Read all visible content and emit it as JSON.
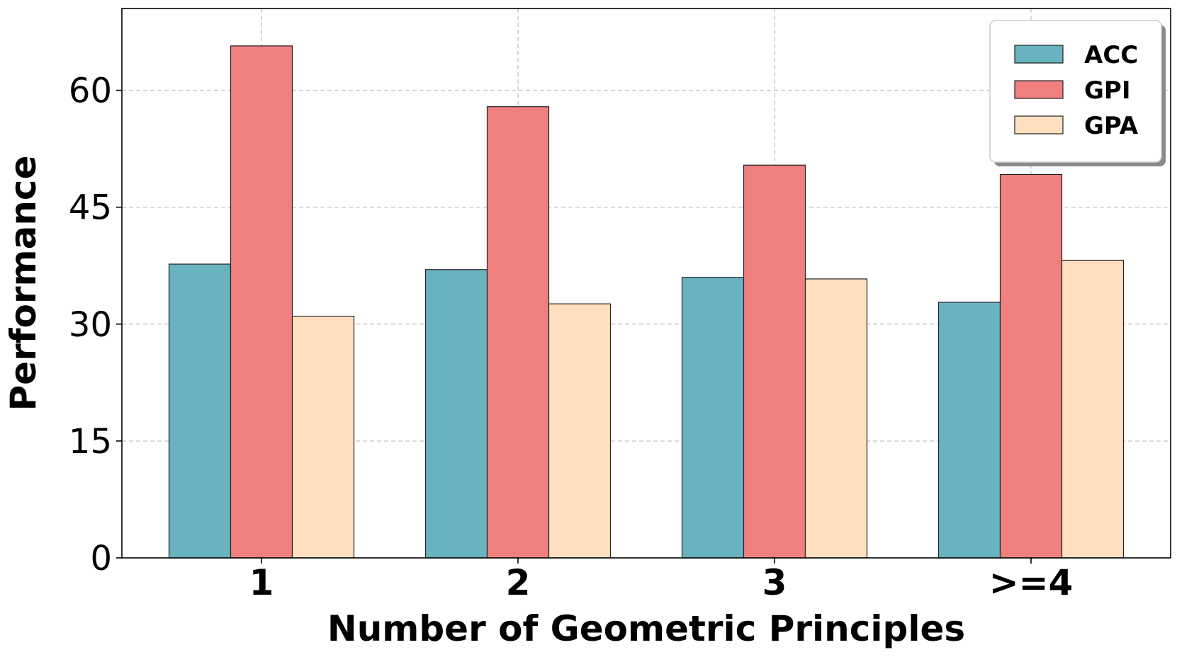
{
  "chart_data": {
    "type": "bar",
    "categories": [
      "1",
      "2",
      "3",
      ">=4"
    ],
    "series": [
      {
        "name": "ACC",
        "color": "#69b3c1",
        "values": [
          37.7,
          37.0,
          36.0,
          32.8
        ]
      },
      {
        "name": "GPI",
        "color": "#f08080",
        "values": [
          65.7,
          57.9,
          50.4,
          49.2
        ]
      },
      {
        "name": "GPA",
        "color": "#ffdfc0",
        "values": [
          31.0,
          32.6,
          35.8,
          38.2
        ]
      }
    ],
    "title": "",
    "xlabel": "Number of Geometric Principles",
    "ylabel": "Performance",
    "ylim": [
      0,
      70.5
    ],
    "yticks": [
      0,
      15,
      30,
      45,
      60
    ],
    "grid": true,
    "legend_position": "top-right"
  }
}
